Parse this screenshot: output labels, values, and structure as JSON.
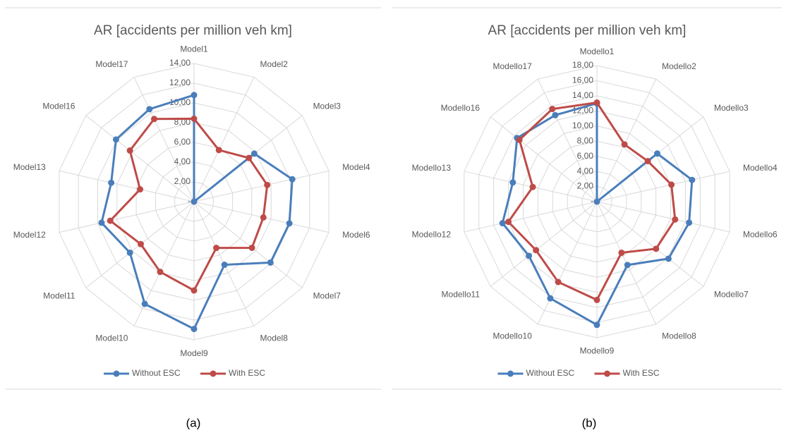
{
  "chart_data": [
    {
      "type": "radar",
      "title": "AR [accidents per million veh km]",
      "caption": "(a)",
      "categories": [
        "Model1",
        "Model2",
        "Model3",
        "Model4",
        "Model6",
        "Model7",
        "Model8",
        "Model9",
        "Model10",
        "Model11",
        "Model12",
        "Model13",
        "Model16",
        "Model17"
      ],
      "series": [
        {
          "name": "Without ESC",
          "color": "#4a7ebb",
          "values": [
            10.8,
            0,
            7.8,
            10.2,
            9.9,
            9.9,
            7.1,
            12.9,
            11.5,
            8.3,
            9.6,
            8.6,
            10.1,
            10.4
          ]
        },
        {
          "name": "With ESC",
          "color": "#be4b48",
          "values": [
            8.4,
            5.8,
            7.1,
            7.6,
            7.2,
            7.5,
            5.2,
            9.0,
            7.9,
            6.9,
            8.7,
            5.6,
            8.3,
            9.3
          ]
        }
      ],
      "ylim": [
        0,
        14
      ],
      "yticks": [
        {
          "value": 0,
          "label": "-"
        },
        {
          "value": 2,
          "label": "2,00"
        },
        {
          "value": 4,
          "label": "4,00"
        },
        {
          "value": 6,
          "label": "6,00"
        },
        {
          "value": 8,
          "label": "8,00"
        },
        {
          "value": 10,
          "label": "10,00"
        },
        {
          "value": 12,
          "label": "12,00"
        },
        {
          "value": 14,
          "label": "14,00"
        }
      ],
      "grid": true,
      "legend": "bottom"
    },
    {
      "type": "radar",
      "title": "AR [accidents per million veh km]",
      "caption": "(b)",
      "categories": [
        "Modello1",
        "Modello2",
        "Modello3",
        "Modello4",
        "Modello6",
        "Modello7",
        "Modello8",
        "Modello9",
        "Modello10",
        "Modello11",
        "Modello12",
        "Modello13",
        "Modello16",
        "Modello17"
      ],
      "series": [
        {
          "name": "Without ESC",
          "color": "#4a7ebb",
          "values": [
            13.0,
            0,
            10.2,
            12.9,
            12.5,
            12.1,
            9.3,
            16.3,
            14.2,
            11.5,
            12.8,
            11.4,
            13.5,
            12.7
          ]
        },
        {
          "name": "With ESC",
          "color": "#be4b48",
          "values": [
            13.1,
            8.4,
            8.6,
            10.1,
            10.6,
            10.0,
            7.5,
            13.0,
            11.8,
            10.3,
            12.0,
            8.7,
            13.1,
            13.6
          ]
        }
      ],
      "ylim": [
        0,
        18
      ],
      "yticks": [
        {
          "value": 0,
          "label": "-"
        },
        {
          "value": 2,
          "label": "2,00"
        },
        {
          "value": 4,
          "label": "4,00"
        },
        {
          "value": 6,
          "label": "6,00"
        },
        {
          "value": 8,
          "label": "8,00"
        },
        {
          "value": 10,
          "label": "10,00"
        },
        {
          "value": 12,
          "label": "12,00"
        },
        {
          "value": 14,
          "label": "14,00"
        },
        {
          "value": 16,
          "label": "16,00"
        },
        {
          "value": 18,
          "label": "18,00"
        }
      ],
      "grid": true,
      "legend": "bottom"
    }
  ]
}
